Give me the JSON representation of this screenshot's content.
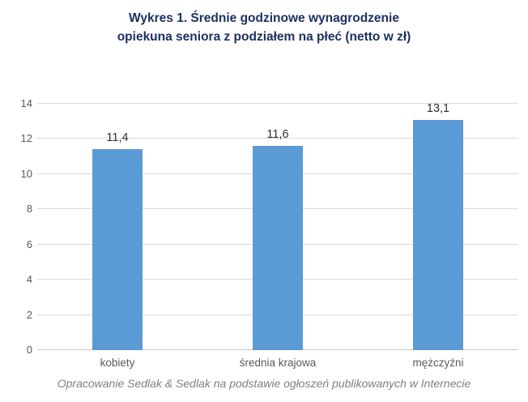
{
  "title": {
    "line1": "Wykres 1. Średnie godzinowe wynagrodzenie",
    "line2": "opiekuna seniora z podziałem na płeć (netto w zł)"
  },
  "footer": "Opracowanie Sedlak & Sedlak na podstawie ogłoszeń publikowanych w Internecie",
  "chart_data": {
    "type": "bar",
    "title": "Wykres 1. Średnie godzinowe wynagrodzenie opiekuna seniora z podziałem na płeć (netto w zł)",
    "categories": [
      "kobiety",
      "średnia krajowa",
      "mężczyźni"
    ],
    "values": [
      11.4,
      11.6,
      13.1
    ],
    "value_labels": [
      "11,4",
      "11,6",
      "13,1"
    ],
    "xlabel": "",
    "ylabel": "",
    "ylim": [
      0,
      14
    ],
    "ytick_step": 2,
    "yticks": [
      0,
      2,
      4,
      6,
      8,
      10,
      12,
      14
    ],
    "grid": "horizontal",
    "legend": "none",
    "colors": {
      "bar": "#5b9bd5",
      "title": "#1f3061",
      "gridline": "#d9d9d9",
      "tick_text": "#595959",
      "value_text": "#303030",
      "footer_text": "#7f7f7f"
    }
  }
}
